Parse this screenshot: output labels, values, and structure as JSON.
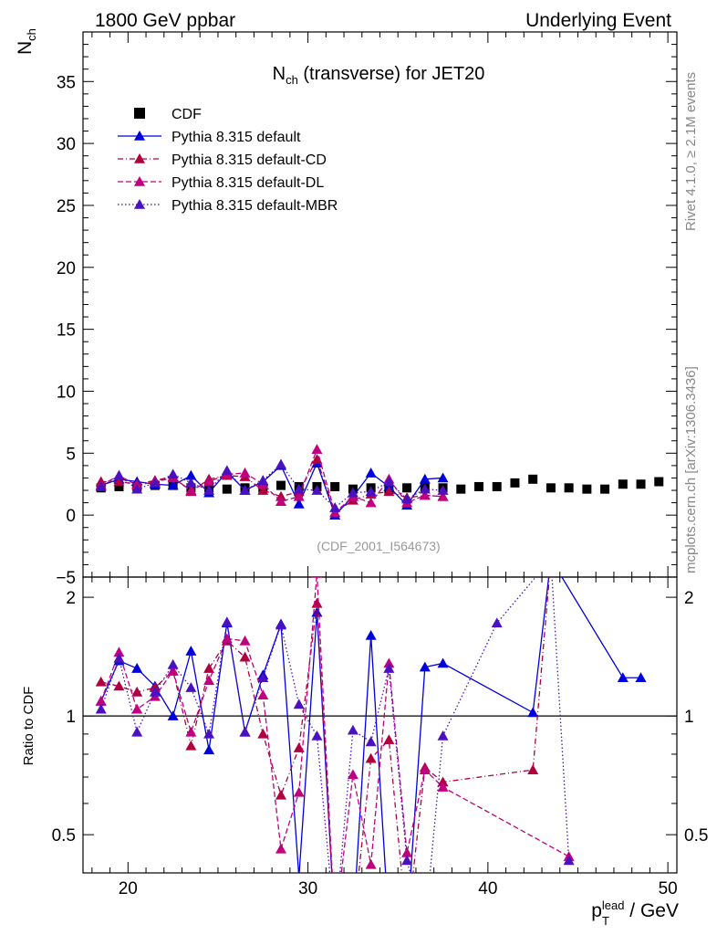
{
  "header": {
    "left": "1800 GeV ppbar",
    "right": "Underlying Event",
    "side_top": "Rivet 4.1.0, ≥ 2.1M events",
    "side_bottom": "mcplots.cern.ch [arXiv:1306.3436]",
    "analysis_id": "(CDF_2001_I564673)"
  },
  "chart_data": [
    {
      "type": "line",
      "title": "N_ch (transverse) for JET20",
      "ylabel": "N_ch",
      "xlabel": "p_T^lead / GeV",
      "xlim": [
        17.5,
        50.5
      ],
      "ylim": [
        -5,
        39
      ],
      "yticks": [
        0,
        5,
        10,
        15,
        20,
        25,
        30,
        35
      ],
      "yticklabels": [
        "0",
        "5",
        "10",
        "15",
        "20",
        "25",
        "30",
        "35"
      ],
      "legend": [
        {
          "label": "CDF",
          "marker": "square",
          "color": "#000000",
          "dash": "solid"
        },
        {
          "label": "Pythia 8.315 default",
          "marker": "triangle",
          "color": "#0000dd",
          "dash": "solid"
        },
        {
          "label": "Pythia 8.315 default-CD",
          "marker": "triangle",
          "color": "#b00040",
          "dash": "dashdot"
        },
        {
          "label": "Pythia 8.315 default-DL",
          "marker": "triangle",
          "color": "#c0007f",
          "dash": "dashed"
        },
        {
          "label": "Pythia 8.315 default-MBR",
          "marker": "triangle",
          "color": "#4b10c0",
          "dash": "dotted"
        }
      ],
      "series": [
        {
          "name": "CDF",
          "x": [
            18.5,
            19.5,
            20.5,
            21.5,
            22.5,
            23.5,
            24.5,
            25.5,
            26.5,
            27.5,
            28.5,
            29.5,
            30.5,
            31.5,
            32.5,
            33.5,
            34.5,
            35.5,
            36.5,
            37.5,
            38.5,
            39.5,
            40.5,
            41.5,
            42.5,
            43.5,
            44.5,
            45.5,
            46.5,
            47.5,
            48.5,
            49.5
          ],
          "y": [
            2.2,
            2.3,
            2.3,
            2.4,
            2.4,
            2.2,
            2.2,
            2.1,
            2.2,
            2.2,
            2.4,
            2.3,
            2.3,
            2.3,
            2.1,
            2.2,
            2.1,
            2.2,
            2.2,
            2.2,
            2.1,
            2.3,
            2.3,
            2.6,
            2.9,
            2.2,
            2.2,
            2.1,
            2.1,
            2.5,
            2.5,
            2.7
          ]
        },
        {
          "name": "Pythia 8.315 default",
          "x": [
            18.5,
            19.5,
            20.5,
            21.5,
            22.5,
            23.5,
            24.5,
            25.5,
            26.5,
            27.5,
            28.5,
            29.5,
            30.5,
            31.5,
            32.5,
            33.5,
            34.5,
            35.5,
            36.5,
            37.5
          ],
          "y": [
            2.4,
            2.9,
            2.7,
            2.5,
            2.4,
            3.2,
            1.8,
            3.5,
            2.0,
            2.7,
            4.0,
            0.9,
            4.2,
            0.0,
            1.5,
            3.4,
            2.3,
            0.8,
            2.9,
            3.0
          ]
        },
        {
          "name": "Pythia 8.315 default-CD",
          "x": [
            18.5,
            19.5,
            20.5,
            21.5,
            22.5,
            23.5,
            24.5,
            25.5,
            26.5,
            27.5,
            28.5,
            29.5,
            30.5,
            31.5,
            32.5,
            33.5,
            34.5,
            35.5,
            36.5,
            37.5
          ],
          "y": [
            2.7,
            2.7,
            2.5,
            2.8,
            3.1,
            1.9,
            2.9,
            3.2,
            3.1,
            2.0,
            1.5,
            1.9,
            4.5,
            0.2,
            1.2,
            1.7,
            1.9,
            1.4,
            1.6,
            1.5
          ]
        },
        {
          "name": "Pythia 8.315 default-DL",
          "x": [
            18.5,
            19.5,
            20.5,
            21.5,
            22.5,
            23.5,
            24.5,
            25.5,
            26.5,
            27.5,
            28.5,
            29.5,
            30.5,
            31.5,
            32.5,
            33.5,
            34.5,
            35.5,
            36.5,
            37.5
          ],
          "y": [
            2.4,
            3.2,
            2.4,
            2.7,
            3.0,
            2.0,
            2.7,
            3.3,
            3.4,
            2.5,
            1.1,
            1.5,
            5.3,
            0.2,
            1.5,
            1.0,
            2.9,
            1.0,
            1.6,
            1.5
          ]
        },
        {
          "name": "Pythia 8.315 default-MBR",
          "x": [
            18.5,
            19.5,
            20.5,
            21.5,
            22.5,
            23.5,
            24.5,
            25.5,
            26.5,
            27.5,
            28.5,
            29.5,
            30.5,
            31.5,
            32.5,
            33.5,
            34.5,
            35.5,
            36.5,
            37.5
          ],
          "y": [
            2.3,
            3.2,
            2.1,
            2.6,
            3.3,
            2.6,
            2.0,
            3.6,
            2.0,
            2.8,
            4.1,
            2.1,
            2.0,
            0.6,
            1.8,
            1.9,
            2.7,
            1.3,
            2.1,
            2.0
          ]
        }
      ]
    },
    {
      "type": "line",
      "title": "",
      "ylabel": "Ratio to CDF",
      "xlabel": "p_T^lead / GeV",
      "xlim": [
        17.5,
        50.5
      ],
      "ylim": [
        0.4,
        2.25
      ],
      "reference_line": 1,
      "yticks": [
        0.5,
        1,
        2
      ],
      "yticklabels": [
        "0.5",
        "1",
        "2"
      ],
      "xticks": [
        20,
        30,
        40,
        50
      ],
      "xticklabels": [
        "20",
        "30",
        "40",
        "50"
      ],
      "series": [
        {
          "name": "Pythia 8.315 default",
          "x": [
            18.5,
            19.5,
            20.5,
            21.5,
            22.5,
            23.5,
            24.5,
            25.5,
            26.5,
            27.5,
            28.5,
            29.5,
            30.5,
            31.5,
            32.5,
            33.5,
            34.5,
            35.5,
            36.5,
            37.5,
            42.5,
            43.5,
            47.5,
            48.5
          ],
          "y": [
            1.09,
            1.38,
            1.32,
            1.19,
            1.0,
            1.46,
            0.82,
            1.72,
            0.91,
            1.27,
            1.71,
            0.39,
            1.83,
            0.0,
            0.0,
            1.6,
            0.0,
            0.0,
            1.33,
            1.36,
            1.02,
            2.5,
            1.25,
            1.25
          ]
        },
        {
          "name": "Pythia 8.315 default-CD",
          "x": [
            18.5,
            19.5,
            20.5,
            21.5,
            22.5,
            23.5,
            24.5,
            25.5,
            26.5,
            27.5,
            28.5,
            29.5,
            30.5,
            31.5,
            32.5,
            33.5,
            34.5,
            35.5,
            36.5,
            37.5,
            42.5,
            43.5
          ],
          "y": [
            1.22,
            1.19,
            1.15,
            1.18,
            1.3,
            0.84,
            1.32,
            1.55,
            1.41,
            0.9,
            0.63,
            0.83,
            1.93,
            0.0,
            0.0,
            0.78,
            0.87,
            0.0,
            0.74,
            0.68,
            0.73,
            2.5
          ]
        },
        {
          "name": "Pythia 8.315 default-DL",
          "x": [
            18.5,
            19.5,
            20.5,
            21.5,
            22.5,
            23.5,
            24.5,
            25.5,
            26.5,
            27.5,
            28.5,
            29.5,
            30.5,
            31.5,
            32.5,
            33.5,
            34.5,
            35.5,
            36.5,
            37.5,
            44.5
          ],
          "y": [
            1.09,
            1.45,
            1.04,
            1.12,
            1.3,
            0.91,
            1.23,
            1.57,
            1.55,
            1.13,
            0.46,
            0.64,
            2.3,
            0.0,
            0.71,
            0.42,
            1.36,
            0.45,
            0.73,
            0.66,
            0.44
          ]
        },
        {
          "name": "Pythia 8.315 default-MBR",
          "x": [
            18.5,
            19.5,
            20.5,
            21.5,
            22.5,
            23.5,
            24.5,
            25.5,
            26.5,
            27.5,
            28.5,
            29.5,
            30.5,
            31.5,
            32.5,
            33.5,
            34.5,
            35.5,
            36.5,
            37.5,
            40.5,
            43.5,
            44.5
          ],
          "y": [
            1.04,
            1.4,
            0.91,
            1.15,
            1.35,
            1.18,
            0.9,
            1.73,
            0.91,
            1.25,
            1.7,
            1.07,
            0.89,
            0.0,
            0.92,
            0.86,
            1.32,
            0.43,
            0.0,
            0.89,
            1.72,
            2.5,
            0.43
          ]
        }
      ]
    }
  ]
}
